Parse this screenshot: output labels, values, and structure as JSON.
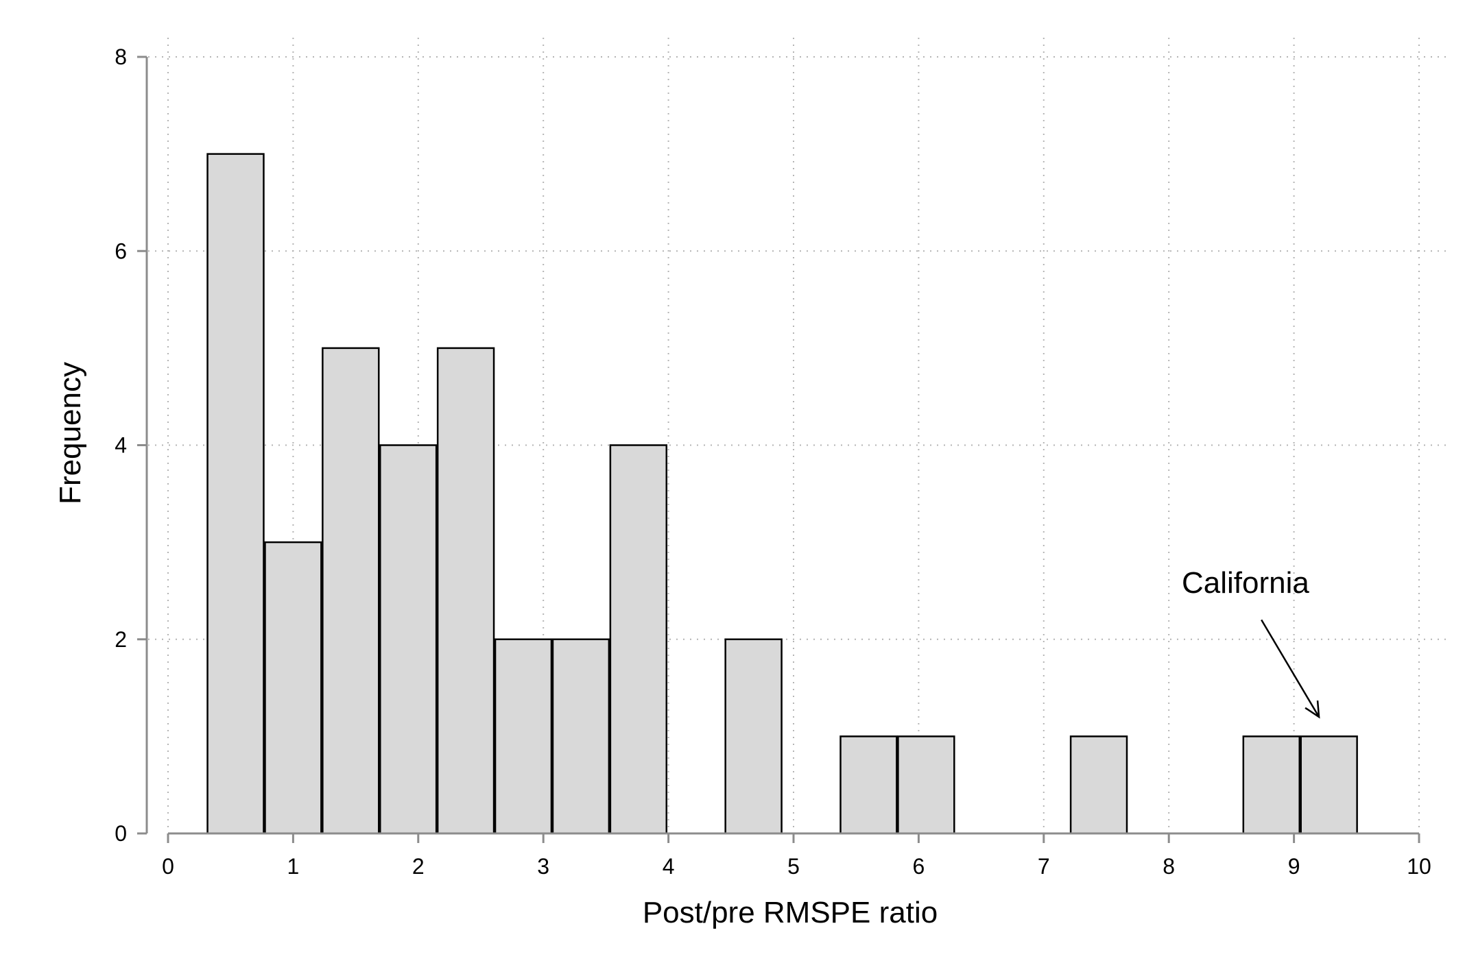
{
  "chart_data": {
    "type": "bar",
    "xlabel": "Post/pre RMSPE ratio",
    "ylabel": "Frequency",
    "xlim": [
      0,
      10
    ],
    "ylim": [
      0,
      8
    ],
    "x_ticks": [
      "0",
      "1",
      "2",
      "3",
      "4",
      "5",
      "6",
      "7",
      "8",
      "9",
      "10"
    ],
    "y_ticks": [
      "0",
      "2",
      "4",
      "6",
      "8"
    ],
    "grid": true,
    "bin_width": 0.46,
    "bins": [
      {
        "start": 0.31,
        "value": 7
      },
      {
        "start": 0.77,
        "value": 3
      },
      {
        "start": 1.23,
        "value": 5
      },
      {
        "start": 1.69,
        "value": 4
      },
      {
        "start": 2.15,
        "value": 5
      },
      {
        "start": 2.61,
        "value": 2
      },
      {
        "start": 3.07,
        "value": 2
      },
      {
        "start": 3.53,
        "value": 4
      },
      {
        "start": 4.45,
        "value": 2
      },
      {
        "start": 5.37,
        "value": 1
      },
      {
        "start": 5.83,
        "value": 1
      },
      {
        "start": 7.21,
        "value": 1
      },
      {
        "start": 8.59,
        "value": 1
      },
      {
        "start": 9.05,
        "value": 1
      }
    ],
    "colors": {
      "bar_fill": "#d9d9d9",
      "bar_stroke": "#000000",
      "axis": "#8c8c8c",
      "grid": "#b4b4b4"
    },
    "annotation": {
      "text": "California",
      "arrow_from": [
        8.74,
        2.2
      ],
      "arrow_to": [
        9.2,
        1.2
      ]
    }
  }
}
